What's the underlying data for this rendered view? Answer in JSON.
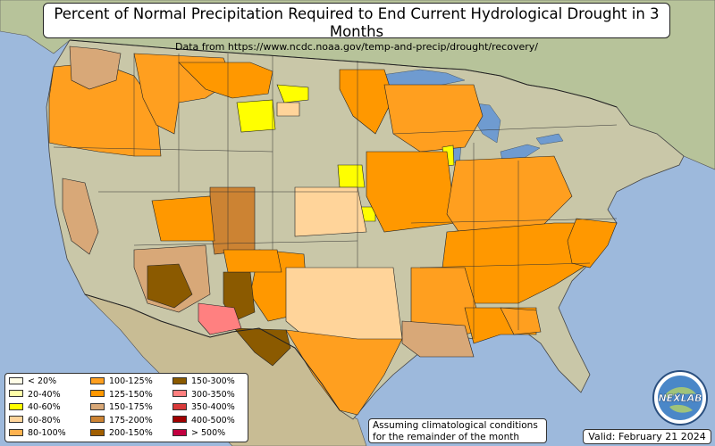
{
  "header": {
    "title": "Percent of Normal Precipitation Required to End Current Hydrological Drought in 3 Months",
    "subtitle": "Data from https://www.ncdc.noaa.gov/temp-and-precip/drought/recovery/"
  },
  "legend": {
    "items": [
      {
        "label": "< 20%",
        "color": "#fffde6"
      },
      {
        "label": "20-40%",
        "color": "#ffffa8"
      },
      {
        "label": "40-60%",
        "color": "#ffff00"
      },
      {
        "label": "60-80%",
        "color": "#ffd49a"
      },
      {
        "label": "80-100%",
        "color": "#ffb24f"
      },
      {
        "label": "100-125%",
        "color": "#ff9f1f"
      },
      {
        "label": "125-150%",
        "color": "#ff9800"
      },
      {
        "label": "150-175%",
        "color": "#d8a878"
      },
      {
        "label": "175-200%",
        "color": "#cc8333"
      },
      {
        "label": "200-150%",
        "color": "#a05e00"
      },
      {
        "label": "150-300%",
        "color": "#8b5a00"
      },
      {
        "label": "300-350%",
        "color": "#ff8080"
      },
      {
        "label": "350-400%",
        "color": "#d93a3a"
      },
      {
        "label": "400-500%",
        "color": "#a00000"
      },
      {
        "label": "> 500%",
        "color": "#c20040"
      }
    ]
  },
  "note": {
    "line1": "Assuming climatological conditions",
    "line2": "for the remainder of the month"
  },
  "valid_label": "Valid: February 21 2024",
  "logo": {
    "text": "NEXLAB",
    "icon": "globe-logo-icon"
  },
  "map": {
    "ocean_color": "#9db9dc",
    "land_color": "#c9c7a8",
    "canada_color": "#b7c39a",
    "mexico_color": "#c8bc94",
    "lake_color": "#6f9bd0"
  }
}
